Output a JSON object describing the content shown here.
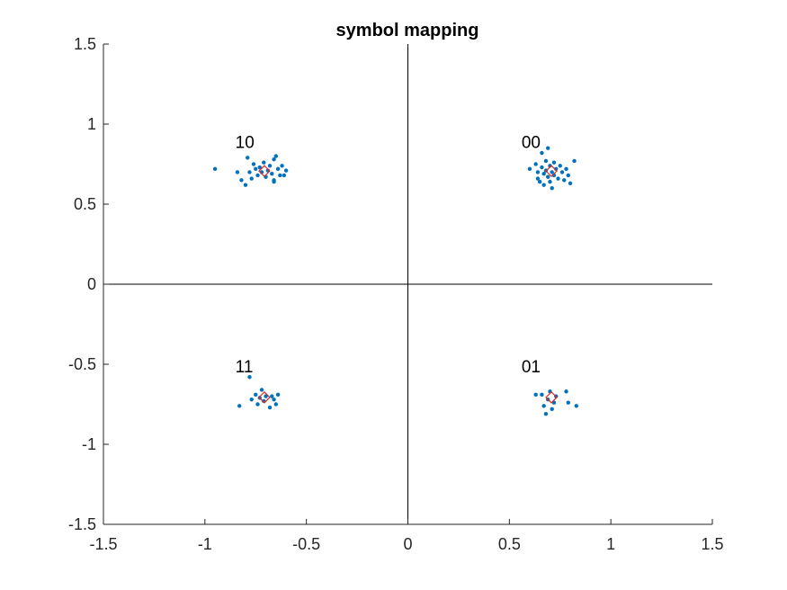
{
  "chart_data": {
    "type": "scatter",
    "title": "symbol mapping",
    "xlabel": "",
    "ylabel": "",
    "xlim": [
      -1.5,
      1.5
    ],
    "ylim": [
      -1.5,
      1.5
    ],
    "xticks": [
      -1.5,
      -1,
      -0.5,
      0,
      0.5,
      1,
      1.5
    ],
    "yticks": [
      -1.5,
      -1,
      -0.5,
      0,
      0.5,
      1,
      1.5
    ],
    "xtick_labels": [
      "-1.5",
      "-1",
      "-0.5",
      "0",
      "0.5",
      "1",
      "1.5"
    ],
    "ytick_labels": [
      "-1.5",
      "-1",
      "-0.5",
      "0",
      "0.5",
      "1",
      "1.5"
    ],
    "grid": false,
    "zero_axes": true,
    "colors": {
      "received": "#0072BD",
      "ideal": "#D92B2B",
      "axes": "#262626",
      "zero_lines": "#000000"
    },
    "ideal_points": [
      {
        "x": 0.707,
        "y": 0.707,
        "label": "00"
      },
      {
        "x": -0.707,
        "y": 0.707,
        "label": "10"
      },
      {
        "x": -0.707,
        "y": -0.707,
        "label": "11"
      },
      {
        "x": 0.707,
        "y": -0.707,
        "label": "01"
      }
    ],
    "annotations": [
      {
        "text": "10",
        "x": -0.85,
        "y": 0.85
      },
      {
        "text": "00",
        "x": 0.56,
        "y": 0.85
      },
      {
        "text": "11",
        "x": -0.85,
        "y": -0.55
      },
      {
        "text": "01",
        "x": 0.56,
        "y": -0.55
      }
    ],
    "received_points": [
      {
        "x": -0.95,
        "y": 0.72
      },
      {
        "x": -0.84,
        "y": 0.7
      },
      {
        "x": -0.82,
        "y": 0.65
      },
      {
        "x": -0.8,
        "y": 0.62
      },
      {
        "x": -0.79,
        "y": 0.79
      },
      {
        "x": -0.78,
        "y": 0.7
      },
      {
        "x": -0.77,
        "y": 0.66
      },
      {
        "x": -0.76,
        "y": 0.75
      },
      {
        "x": -0.75,
        "y": 0.72
      },
      {
        "x": -0.74,
        "y": 0.68
      },
      {
        "x": -0.73,
        "y": 0.73
      },
      {
        "x": -0.72,
        "y": 0.7
      },
      {
        "x": -0.71,
        "y": 0.76
      },
      {
        "x": -0.7,
        "y": 0.67
      },
      {
        "x": -0.69,
        "y": 0.71
      },
      {
        "x": -0.68,
        "y": 0.74
      },
      {
        "x": -0.67,
        "y": 0.69
      },
      {
        "x": -0.66,
        "y": 0.78
      },
      {
        "x": -0.65,
        "y": 0.8
      },
      {
        "x": -0.64,
        "y": 0.72
      },
      {
        "x": -0.63,
        "y": 0.68
      },
      {
        "x": -0.66,
        "y": 0.65
      },
      {
        "x": -0.62,
        "y": 0.74
      },
      {
        "x": -0.6,
        "y": 0.71
      },
      {
        "x": -0.66,
        "y": 0.64
      },
      {
        "x": -0.61,
        "y": 0.68
      },
      {
        "x": 0.6,
        "y": 0.72
      },
      {
        "x": 0.63,
        "y": 0.75
      },
      {
        "x": 0.64,
        "y": 0.7
      },
      {
        "x": 0.64,
        "y": 0.66
      },
      {
        "x": 0.65,
        "y": 0.64
      },
      {
        "x": 0.66,
        "y": 0.82
      },
      {
        "x": 0.66,
        "y": 0.73
      },
      {
        "x": 0.67,
        "y": 0.69
      },
      {
        "x": 0.67,
        "y": 0.62
      },
      {
        "x": 0.68,
        "y": 0.77
      },
      {
        "x": 0.68,
        "y": 0.71
      },
      {
        "x": 0.69,
        "y": 0.85
      },
      {
        "x": 0.69,
        "y": 0.67
      },
      {
        "x": 0.7,
        "y": 0.74
      },
      {
        "x": 0.7,
        "y": 0.64
      },
      {
        "x": 0.71,
        "y": 0.7
      },
      {
        "x": 0.71,
        "y": 0.6
      },
      {
        "x": 0.72,
        "y": 0.76
      },
      {
        "x": 0.72,
        "y": 0.68
      },
      {
        "x": 0.73,
        "y": 0.72
      },
      {
        "x": 0.74,
        "y": 0.66
      },
      {
        "x": 0.75,
        "y": 0.74
      },
      {
        "x": 0.76,
        "y": 0.7
      },
      {
        "x": 0.77,
        "y": 0.65
      },
      {
        "x": 0.78,
        "y": 0.72
      },
      {
        "x": 0.79,
        "y": 0.68
      },
      {
        "x": 0.8,
        "y": 0.63
      },
      {
        "x": 0.82,
        "y": 0.77
      },
      {
        "x": -0.83,
        "y": -0.76
      },
      {
        "x": -0.78,
        "y": -0.58
      },
      {
        "x": -0.77,
        "y": -0.72
      },
      {
        "x": -0.75,
        "y": -0.69
      },
      {
        "x": -0.74,
        "y": -0.75
      },
      {
        "x": -0.73,
        "y": -0.71
      },
      {
        "x": -0.72,
        "y": -0.66
      },
      {
        "x": -0.71,
        "y": -0.73
      },
      {
        "x": -0.7,
        "y": -0.7
      },
      {
        "x": -0.68,
        "y": -0.77
      },
      {
        "x": -0.67,
        "y": -0.7
      },
      {
        "x": -0.66,
        "y": -0.72
      },
      {
        "x": -0.65,
        "y": -0.75
      },
      {
        "x": -0.64,
        "y": -0.69
      },
      {
        "x": 0.63,
        "y": -0.69
      },
      {
        "x": 0.66,
        "y": -0.69
      },
      {
        "x": 0.67,
        "y": -0.76
      },
      {
        "x": 0.68,
        "y": -0.81
      },
      {
        "x": 0.69,
        "y": -0.72
      },
      {
        "x": 0.7,
        "y": -0.67
      },
      {
        "x": 0.71,
        "y": -0.78
      },
      {
        "x": 0.72,
        "y": -0.74
      },
      {
        "x": 0.73,
        "y": -0.7
      },
      {
        "x": 0.78,
        "y": -0.67
      },
      {
        "x": 0.79,
        "y": -0.74
      },
      {
        "x": 0.83,
        "y": -0.76
      }
    ]
  }
}
